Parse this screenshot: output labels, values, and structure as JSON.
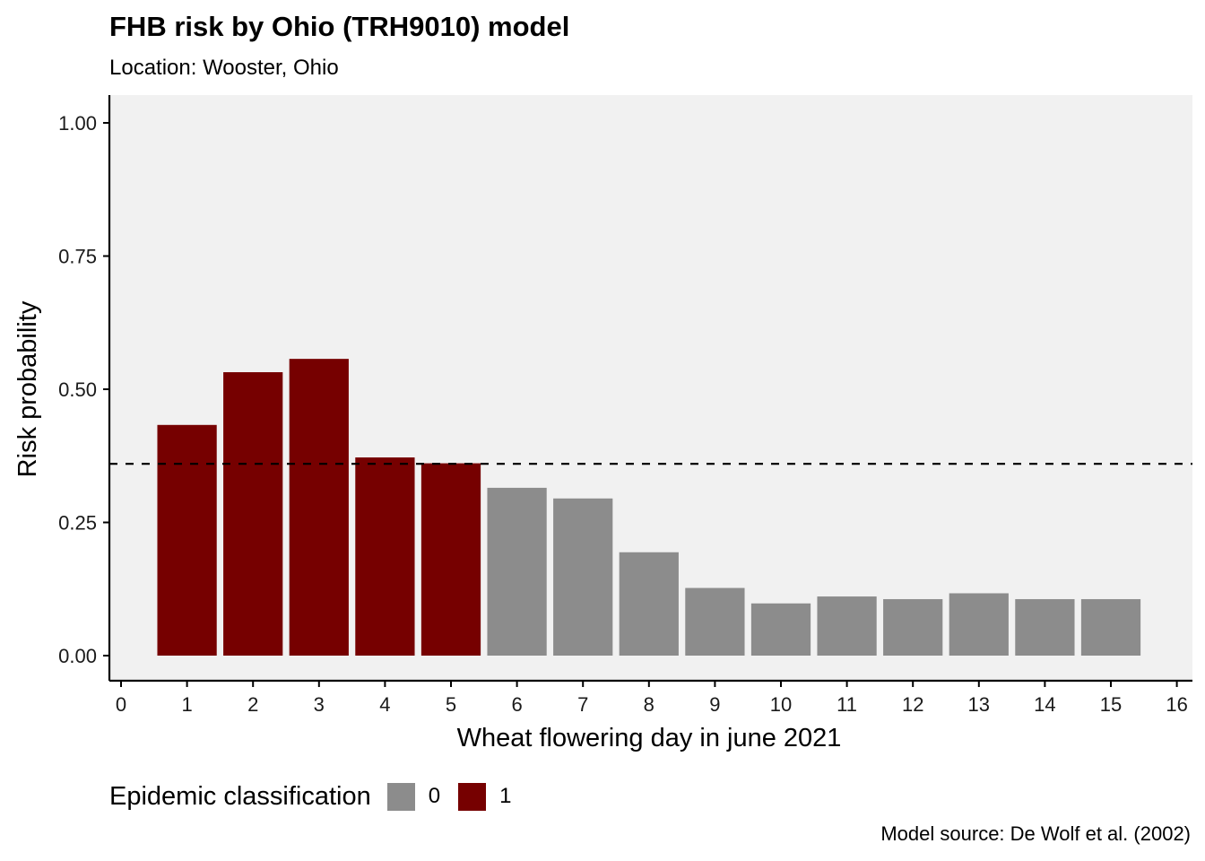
{
  "title": "FHB risk by Ohio (TRH9010) model",
  "subtitle": "Location: Wooster, Ohio",
  "caption": "Model source: De Wolf et al. (2002)",
  "colors": {
    "panel_bg": "#f1f1f1",
    "class_0": "#8c8c8c",
    "class_1": "#760000",
    "threshold_line": "#000000"
  },
  "chart_data": {
    "type": "bar",
    "xlabel": "Wheat flowering day in june 2021",
    "ylabel": "Risk probability",
    "xlim": [
      0,
      16
    ],
    "ylim": [
      0,
      1
    ],
    "x_ticks": [
      "0",
      "1",
      "2",
      "3",
      "4",
      "5",
      "6",
      "7",
      "8",
      "9",
      "10",
      "11",
      "12",
      "13",
      "14",
      "15",
      "16"
    ],
    "y_ticks": [
      {
        "value": 0,
        "label": "0.00"
      },
      {
        "value": 0.25,
        "label": "0.25"
      },
      {
        "value": 0.5,
        "label": "0.50"
      },
      {
        "value": 0.75,
        "label": "0.75"
      },
      {
        "value": 1,
        "label": "1.00"
      }
    ],
    "threshold": 0.36,
    "threshold_style": "dashed",
    "bars": [
      {
        "day": 1,
        "value": 0.433,
        "class": 1
      },
      {
        "day": 2,
        "value": 0.532,
        "class": 1
      },
      {
        "day": 3,
        "value": 0.557,
        "class": 1
      },
      {
        "day": 4,
        "value": 0.372,
        "class": 1
      },
      {
        "day": 5,
        "value": 0.361,
        "class": 1
      },
      {
        "day": 6,
        "value": 0.315,
        "class": 0
      },
      {
        "day": 7,
        "value": 0.295,
        "class": 0
      },
      {
        "day": 8,
        "value": 0.194,
        "class": 0
      },
      {
        "day": 9,
        "value": 0.127,
        "class": 0
      },
      {
        "day": 10,
        "value": 0.098,
        "class": 0
      },
      {
        "day": 11,
        "value": 0.111,
        "class": 0
      },
      {
        "day": 12,
        "value": 0.106,
        "class": 0
      },
      {
        "day": 13,
        "value": 0.117,
        "class": 0
      },
      {
        "day": 14,
        "value": 0.106,
        "class": 0
      },
      {
        "day": 15,
        "value": 0.106,
        "class": 0
      }
    ],
    "legend": {
      "title": "Epidemic classification",
      "position": "bottom-left",
      "entries": [
        {
          "label": "0",
          "color": "#8c8c8c"
        },
        {
          "label": "1",
          "color": "#760000"
        }
      ]
    }
  }
}
